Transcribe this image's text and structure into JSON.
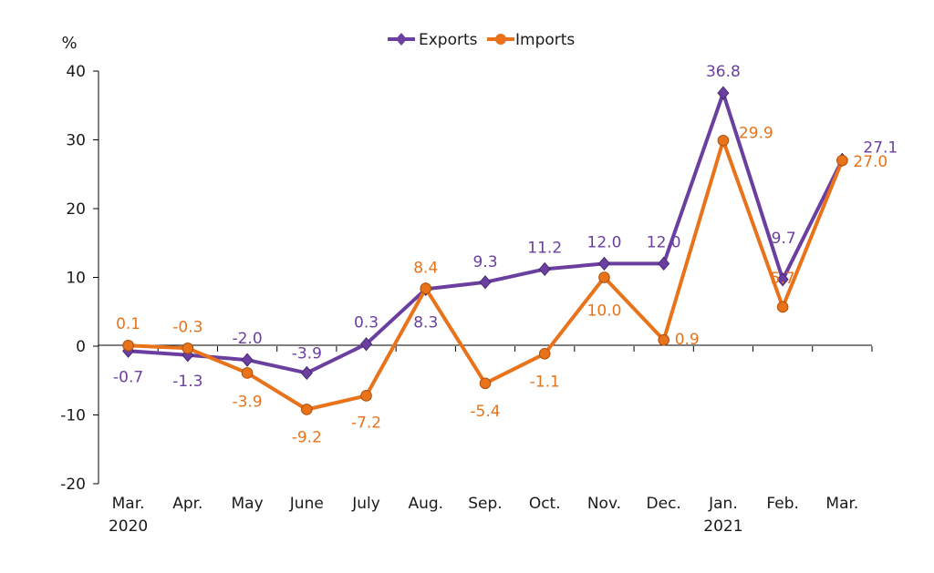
{
  "chart_data": {
    "type": "line",
    "title": "",
    "ylabel": "%",
    "xlabel": "",
    "ylim": [
      -20,
      40
    ],
    "yticks": [
      -20,
      -10,
      0,
      10,
      20,
      30,
      40
    ],
    "categories": [
      "Mar.",
      "Apr.",
      "May",
      "June",
      "July",
      "Aug.",
      "Sep.",
      "Oct.",
      "Nov.",
      "Dec.",
      "Jan.",
      "Feb.",
      "Mar."
    ],
    "year_labels": [
      {
        "index": 0,
        "text": "2020"
      },
      {
        "index": 10,
        "text": "2021"
      }
    ],
    "legend_position": "top-center",
    "series": [
      {
        "name": "Exports",
        "color": "#6B3FA0",
        "marker": "diamond",
        "values": [
          -0.7,
          -1.3,
          -2.0,
          -3.9,
          0.3,
          8.3,
          9.3,
          11.2,
          12.0,
          12.0,
          36.8,
          9.7,
          27.1
        ],
        "labels": [
          "-0.7",
          "-1.3",
          "-2.0",
          "-3.9",
          "0.3",
          "8.3",
          "9.3",
          "11.2",
          "12.0",
          "12.0",
          "36.8",
          "9.7",
          "27.1"
        ]
      },
      {
        "name": "Imports",
        "color": "#E8731A",
        "marker": "circle",
        "values": [
          0.1,
          -0.3,
          -3.9,
          -9.2,
          -7.2,
          8.4,
          -5.4,
          -1.1,
          10.0,
          0.9,
          29.9,
          5.7,
          27.0
        ],
        "labels": [
          "0.1",
          "-0.3",
          "-3.9",
          "-9.2",
          "-7.2",
          "8.4",
          "-5.4",
          "-1.1",
          "10.0",
          "0.9",
          "29.9",
          "5.7",
          "27.0"
        ]
      }
    ]
  }
}
